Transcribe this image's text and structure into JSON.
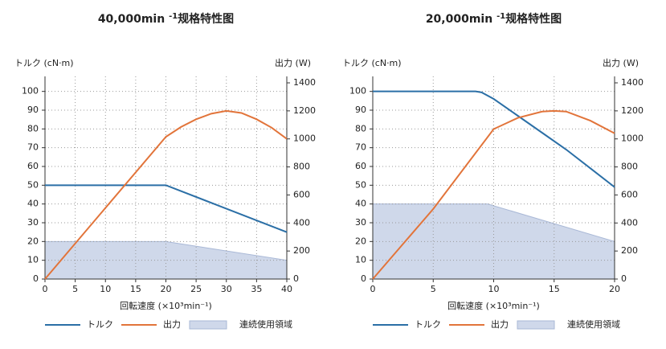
{
  "chart_data": [
    {
      "type": "line",
      "title": [
        "40,000min ",
        "-1",
        "规格特性图"
      ],
      "y_label": "トルク (cN·m)",
      "y2_label": "出力 (W)",
      "x_label": "回転速度 (×10³min⁻¹)",
      "xlim": [
        0,
        40
      ],
      "xticks": [
        0,
        5,
        10,
        15,
        20,
        25,
        30,
        35,
        40
      ],
      "ylim": [
        0,
        108
      ],
      "yticks": [
        0,
        10,
        20,
        30,
        40,
        50,
        60,
        70,
        80,
        90,
        100
      ],
      "y2lim": [
        0,
        1446
      ],
      "y2ticks": [
        0,
        200,
        400,
        600,
        800,
        1000,
        1200,
        1400
      ],
      "grid": true,
      "series": [
        {
          "name": "トルク",
          "color": "#2b6fa6",
          "x": [
            0,
            20,
            40
          ],
          "values": [
            50,
            50,
            25
          ]
        },
        {
          "name": "出力",
          "color": "#e2743a",
          "axis": "y2",
          "x": [
            0,
            20,
            22.5,
            25,
            27.5,
            30,
            32.5,
            35,
            37.5,
            40
          ],
          "values": [
            0,
            1015,
            1085,
            1140,
            1180,
            1200,
            1185,
            1140,
            1080,
            1000
          ]
        },
        {
          "name": "連続使用領域",
          "color": "#cfd8ea",
          "kind": "area",
          "x": [
            0,
            20,
            40
          ],
          "values": [
            20,
            20,
            10
          ]
        }
      ]
    },
    {
      "type": "line",
      "title": [
        "20,000min ",
        "-1",
        "规格特性图"
      ],
      "y_label": "トルク (cN·m)",
      "y2_label": "出力 (W)",
      "x_label": "回転速度 (×10³min⁻¹)",
      "xlim": [
        0,
        20
      ],
      "xticks": [
        0,
        5,
        10,
        15,
        20
      ],
      "ylim": [
        0,
        108
      ],
      "yticks": [
        0,
        10,
        20,
        30,
        40,
        50,
        60,
        70,
        80,
        90,
        100
      ],
      "y2lim": [
        0,
        1446
      ],
      "y2ticks": [
        0,
        200,
        400,
        600,
        800,
        1000,
        1200,
        1400
      ],
      "grid": true,
      "series": [
        {
          "name": "トルク",
          "color": "#2b6fa6",
          "x": [
            0,
            8.5,
            9,
            10,
            12,
            14,
            16,
            18,
            20
          ],
          "values": [
            100,
            100,
            99.5,
            96,
            87,
            78,
            69,
            59,
            49
          ]
        },
        {
          "name": "出力",
          "color": "#e2743a",
          "axis": "y2",
          "x": [
            0,
            5,
            10,
            12,
            14,
            15,
            16,
            18,
            20
          ],
          "values": [
            0,
            500,
            1070,
            1150,
            1195,
            1200,
            1195,
            1130,
            1040
          ]
        },
        {
          "name": "連続使用領域",
          "color": "#cfd8ea",
          "kind": "area",
          "x": [
            0,
            9.5,
            20
          ],
          "values": [
            40,
            40,
            20
          ]
        }
      ]
    }
  ]
}
